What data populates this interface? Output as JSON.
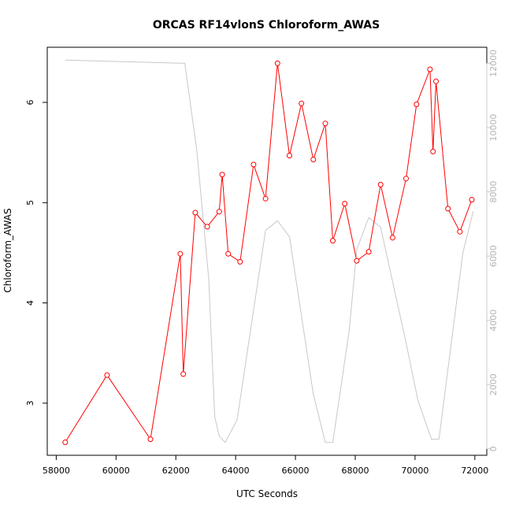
{
  "chart_data": {
    "type": "line",
    "title": "ORCAS RF14vlonS Chloroform_AWAS",
    "xlabel": "UTC Seconds",
    "ylabel": "Chloroform_AWAS",
    "xlim": [
      57700,
      72400
    ],
    "ylim": [
      2.48,
      6.55
    ],
    "y2lim": [
      -200,
      12500
    ],
    "x_ticks": [
      58000,
      60000,
      62000,
      64000,
      66000,
      68000,
      70000,
      72000
    ],
    "y_ticks": [
      3,
      4,
      5,
      6
    ],
    "y2_ticks": [
      0,
      2000,
      4000,
      6000,
      8000,
      10000,
      12000
    ],
    "series": [
      {
        "role": "primary",
        "color": "#ff0000",
        "marker": "open-circle",
        "points": [
          [
            58300,
            2.61
          ],
          [
            59700,
            3.28
          ],
          [
            61150,
            2.64
          ],
          [
            62150,
            4.49
          ],
          [
            62250,
            3.29
          ],
          [
            62650,
            4.9
          ],
          [
            63050,
            4.76
          ],
          [
            63450,
            4.91
          ],
          [
            63550,
            5.28
          ],
          [
            63750,
            4.49
          ],
          [
            64150,
            4.41
          ],
          [
            64600,
            5.38
          ],
          [
            65000,
            5.04
          ],
          [
            65400,
            6.39
          ],
          [
            65800,
            5.47
          ],
          [
            66200,
            5.99
          ],
          [
            66600,
            5.43
          ],
          [
            67000,
            5.79
          ],
          [
            67250,
            4.62
          ],
          [
            67650,
            4.99
          ],
          [
            68050,
            4.42
          ],
          [
            68450,
            4.51
          ],
          [
            68850,
            5.18
          ],
          [
            69250,
            4.65
          ],
          [
            69700,
            5.24
          ],
          [
            70050,
            5.98
          ],
          [
            70500,
            6.33
          ],
          [
            70600,
            5.51
          ],
          [
            70700,
            6.21
          ],
          [
            71100,
            4.94
          ],
          [
            71500,
            4.71
          ],
          [
            71900,
            5.03
          ]
        ]
      },
      {
        "role": "secondary-axis",
        "color": "#c8c8c8",
        "points": [
          [
            58300,
            12100
          ],
          [
            62300,
            12000
          ],
          [
            62700,
            9300
          ],
          [
            63100,
            5300
          ],
          [
            63300,
            1000
          ],
          [
            63450,
            400
          ],
          [
            63650,
            200
          ],
          [
            64050,
            900
          ],
          [
            65000,
            6800
          ],
          [
            65400,
            7100
          ],
          [
            65800,
            6600
          ],
          [
            66600,
            1700
          ],
          [
            67000,
            200
          ],
          [
            67250,
            200
          ],
          [
            67800,
            3700
          ],
          [
            68050,
            6200
          ],
          [
            68450,
            7200
          ],
          [
            68850,
            6900
          ],
          [
            69700,
            3300
          ],
          [
            70100,
            1500
          ],
          [
            70550,
            300
          ],
          [
            70800,
            300
          ],
          [
            71600,
            6100
          ],
          [
            71950,
            7400
          ]
        ]
      }
    ]
  }
}
